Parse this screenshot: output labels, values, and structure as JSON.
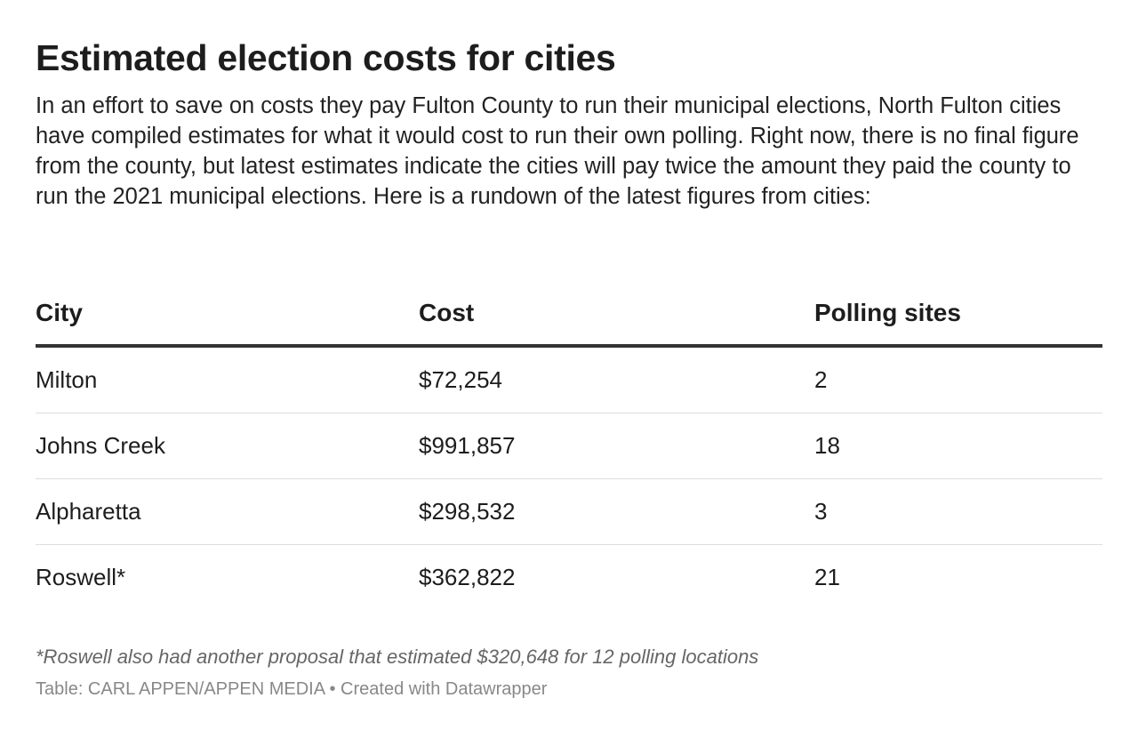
{
  "header": {
    "title": "Estimated election costs for cities",
    "description": "In an effort to save on costs they pay Fulton County to run their municipal elections, North Fulton cities have compiled estimates for what it would cost to run their own polling. Right now, there is no final figure from the county, but latest estimates indicate the cities will pay twice the amount they paid the county to run the 2021 municipal elections. Here is a rundown of the latest figures from cities:"
  },
  "table": {
    "columns": [
      "City",
      "Cost",
      "Polling sites"
    ],
    "rows": [
      [
        "Milton",
        "$72,254",
        "2"
      ],
      [
        "Johns Creek",
        "$991,857",
        "18"
      ],
      [
        "Alpharetta",
        "$298,532",
        "3"
      ],
      [
        "Roswell*",
        "$362,822",
        "21"
      ]
    ]
  },
  "notes": "*Roswell also had another proposal that estimated $320,648 for 12 polling locations",
  "source": "Table: CARL APPEN/APPEN MEDIA • Created with Datawrapper"
}
